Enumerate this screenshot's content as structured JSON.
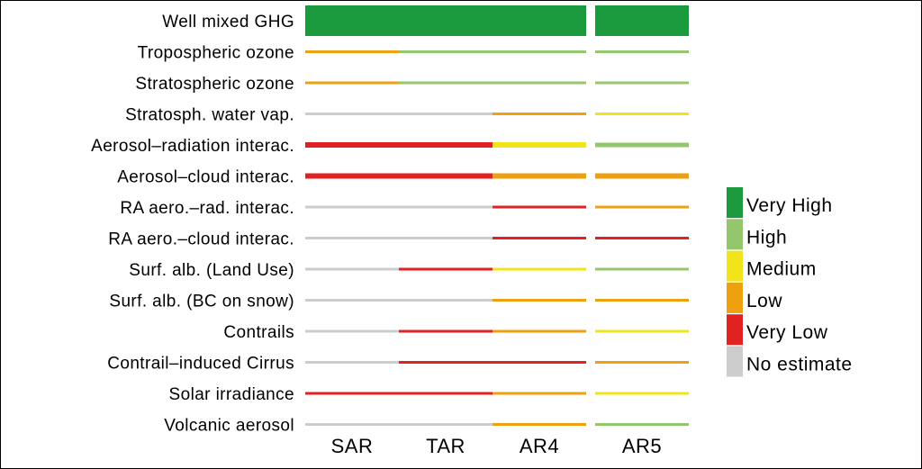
{
  "chart_data": {
    "type": "heatmap",
    "title": "",
    "columns": [
      "SAR",
      "TAR",
      "AR4",
      "AR5"
    ],
    "rows": [
      {
        "label": "Well mixed GHG",
        "levels": [
          "Very High",
          "Very High",
          "Very High",
          "Very High"
        ]
      },
      {
        "label": "Tropospheric ozone",
        "levels": [
          "Low",
          "High",
          "High",
          "High"
        ]
      },
      {
        "label": "Stratospheric ozone",
        "levels": [
          "Low",
          "High",
          "High",
          "High"
        ]
      },
      {
        "label": "Stratosph. water vap.",
        "levels": [
          "No estimate",
          "No estimate",
          "Low",
          "Medium"
        ]
      },
      {
        "label": "Aerosol–radiation interac.",
        "levels": [
          "Very Low",
          "Very Low",
          "Medium",
          "High"
        ]
      },
      {
        "label": "Aerosol–cloud interac.",
        "levels": [
          "Very Low",
          "Very Low",
          "Low",
          "Low"
        ]
      },
      {
        "label": "RA aero.–rad. interac.",
        "levels": [
          "No estimate",
          "No estimate",
          "Very Low",
          "Low"
        ]
      },
      {
        "label": "RA aero.–cloud interac.",
        "levels": [
          "No estimate",
          "No estimate",
          "Very Low",
          "Very Low"
        ]
      },
      {
        "label": "Surf. alb. (Land Use)",
        "levels": [
          "No estimate",
          "Very Low",
          "Medium",
          "High"
        ]
      },
      {
        "label": "Surf. alb. (BC on snow)",
        "levels": [
          "No estimate",
          "No estimate",
          "Low",
          "Low"
        ]
      },
      {
        "label": "Contrails",
        "levels": [
          "No estimate",
          "Very Low",
          "Low",
          "Medium"
        ]
      },
      {
        "label": "Contrail–induced Cirrus",
        "levels": [
          "No estimate",
          "Very Low",
          "Very Low",
          "Low"
        ]
      },
      {
        "label": "Solar irradiance",
        "levels": [
          "Very Low",
          "Very Low",
          "Low",
          "Medium"
        ]
      },
      {
        "label": "Volcanic aerosol",
        "levels": [
          "No estimate",
          "No estimate",
          "Low",
          "High"
        ]
      }
    ],
    "legend": [
      {
        "label": "Very High",
        "color": "#1a9a3c"
      },
      {
        "label": "High",
        "color": "#94c66e"
      },
      {
        "label": "Medium",
        "color": "#f1e41b"
      },
      {
        "label": "Low",
        "color": "#eda110"
      },
      {
        "label": "Very Low",
        "color": "#e12222"
      },
      {
        "label": "No estimate",
        "color": "#cccccc"
      }
    ],
    "legend_placement": "right"
  }
}
